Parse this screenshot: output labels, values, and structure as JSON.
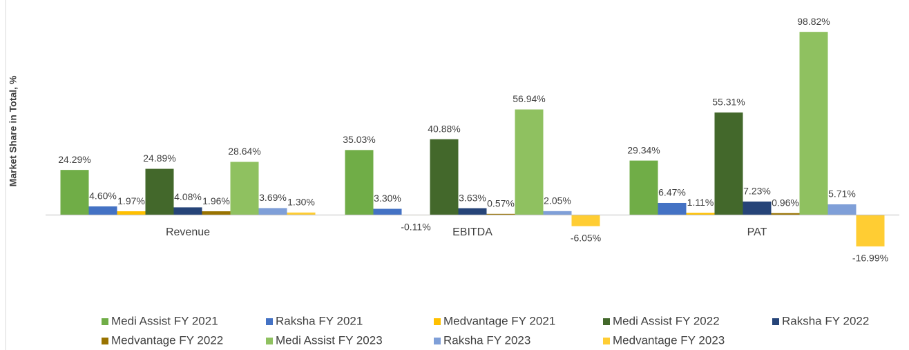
{
  "chart_data": {
    "type": "bar",
    "y_label": "Market Share in Total, %",
    "categories": [
      "Revenue",
      "EBITDA",
      "PAT"
    ],
    "ylim": [
      -20,
      100
    ],
    "series": [
      {
        "name": "Medi Assist FY 2021",
        "color": "#70ad47",
        "values": [
          24.29,
          35.03,
          29.34
        ],
        "value_labels": [
          "24.29%",
          "35.03%",
          "29.34%"
        ]
      },
      {
        "name": "Raksha FY 2021",
        "color": "#4472c4",
        "values": [
          4.6,
          3.3,
          6.47
        ],
        "value_labels": [
          "4.60%",
          "3.30%",
          "6.47%"
        ]
      },
      {
        "name": "Medvantage FY 2021",
        "color": "#ffc000",
        "values": [
          1.97,
          -0.11,
          1.11
        ],
        "value_labels": [
          "1.97%",
          "-0.11%",
          "1.11%"
        ]
      },
      {
        "name": "Medi Assist FY 2022",
        "color": "#43682b",
        "values": [
          24.89,
          40.88,
          55.31
        ],
        "value_labels": [
          "24.89%",
          "40.88%",
          "55.31%"
        ]
      },
      {
        "name": "Raksha FY 2022",
        "color": "#264478",
        "values": [
          4.08,
          3.63,
          7.23
        ],
        "value_labels": [
          "4.08%",
          "3.63%",
          "7.23%"
        ]
      },
      {
        "name": "Medvantage FY 2022",
        "color": "#997300",
        "values": [
          1.96,
          0.57,
          0.96
        ],
        "value_labels": [
          "1.96%",
          "0.57%",
          "0.96%"
        ]
      },
      {
        "name": "Medi Assist FY 2023",
        "color": "#8fc160",
        "values": [
          28.64,
          56.94,
          98.82
        ],
        "value_labels": [
          "28.64%",
          "56.94%",
          "98.82%"
        ]
      },
      {
        "name": "Raksha FY 2023",
        "color": "#7f9fd8",
        "values": [
          3.69,
          2.05,
          5.71
        ],
        "value_labels": [
          "3.69%",
          "2.05%",
          "5.71%"
        ]
      },
      {
        "name": "Medvantage FY 2023",
        "color": "#ffcd33",
        "values": [
          1.3,
          -6.05,
          -16.99
        ],
        "value_labels": [
          "1.30%",
          "-6.05%",
          "-16.99%"
        ]
      }
    ]
  }
}
